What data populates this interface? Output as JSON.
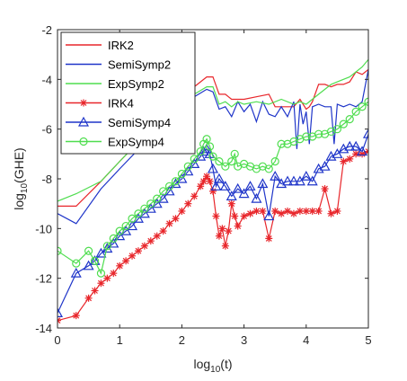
{
  "chart_data": {
    "type": "line",
    "title": "",
    "xlabel": "log",
    "xlabel_sub": "10",
    "xlabel_suffix": "(t)",
    "ylabel": "log",
    "ylabel_sub": "10",
    "ylabel_suffix": "(GHE)",
    "xlim": [
      0,
      5
    ],
    "ylim": [
      -14,
      -2
    ],
    "xticks": [
      0,
      1,
      2,
      3,
      4,
      5
    ],
    "yticks": [
      -14,
      -12,
      -10,
      -8,
      -6,
      -4,
      -2
    ],
    "xtick_labels": [
      "0",
      "1",
      "2",
      "3",
      "4",
      "5"
    ],
    "ytick_labels": [
      "-14",
      "-12",
      "-10",
      "-8",
      "-6",
      "-4",
      "-2"
    ],
    "grid": false,
    "legend_position": "top-left",
    "series": [
      {
        "name": "IRK2",
        "color": "#e8262b",
        "marker": "none",
        "x": [
          0,
          0.3,
          0.7,
          1.0,
          1.5,
          2.0,
          2.2,
          2.4,
          2.5,
          2.6,
          2.7,
          2.8,
          3.0,
          3.2,
          3.4,
          3.5,
          3.6,
          3.8,
          3.9,
          4.0,
          4.05,
          4.1,
          4.2,
          4.3,
          4.4,
          4.5,
          4.6,
          4.7,
          4.8,
          4.9,
          5.0
        ],
        "y": [
          -9.1,
          -9.1,
          -8.1,
          -7.3,
          -6.0,
          -4.8,
          -4.3,
          -3.9,
          -3.9,
          -4.6,
          -4.6,
          -4.8,
          -4.8,
          -4.7,
          -4.6,
          -5.1,
          -5.1,
          -5.1,
          -4.8,
          -5.2,
          -5.1,
          -4.9,
          -4.2,
          -4.2,
          -4.3,
          -4.2,
          -4.2,
          -4.1,
          -3.7,
          -3.8,
          -3.6
        ]
      },
      {
        "name": "SemiSymp2",
        "color": "#1f35c9",
        "marker": "none",
        "x": [
          0,
          0.3,
          0.7,
          1.0,
          1.5,
          2.0,
          2.2,
          2.4,
          2.5,
          2.6,
          2.7,
          2.8,
          2.9,
          3.0,
          3.1,
          3.2,
          3.3,
          3.4,
          3.5,
          3.6,
          3.7,
          3.8,
          3.85,
          3.9,
          3.95,
          4.0,
          4.05,
          4.1,
          4.2,
          4.3,
          4.4,
          4.45,
          4.5,
          4.6,
          4.7,
          4.8,
          4.9,
          5.0
        ],
        "y": [
          -9.4,
          -9.8,
          -8.4,
          -7.6,
          -6.3,
          -5.1,
          -4.7,
          -4.4,
          -4.5,
          -5.2,
          -5.1,
          -5.5,
          -4.9,
          -5.3,
          -5.0,
          -5.7,
          -4.9,
          -5.4,
          -5.5,
          -5.1,
          -5.5,
          -4.9,
          -6.8,
          -5.0,
          -5.8,
          -5.3,
          -6.6,
          -5.1,
          -5.0,
          -5.1,
          -5.1,
          -6.6,
          -5.0,
          -5.1,
          -5.0,
          -5.1,
          -4.9,
          -3.6
        ]
      },
      {
        "name": "ExpSymp2",
        "color": "#4fdd4f",
        "marker": "none",
        "x": [
          0,
          0.3,
          0.7,
          1.0,
          1.5,
          2.0,
          2.2,
          2.4,
          2.5,
          2.6,
          2.7,
          2.8,
          2.9,
          3.0,
          3.2,
          3.4,
          3.6,
          3.8,
          3.9,
          4.0,
          4.2,
          4.3,
          4.4,
          4.5,
          4.6,
          4.7,
          4.8,
          4.9,
          5.0
        ],
        "y": [
          -8.9,
          -8.6,
          -8.1,
          -7.3,
          -6.0,
          -4.9,
          -4.6,
          -4.3,
          -4.3,
          -5.0,
          -4.9,
          -5.1,
          -4.9,
          -5.0,
          -4.9,
          -5.0,
          -4.8,
          -5.0,
          -4.9,
          -5.0,
          -4.6,
          -4.4,
          -4.2,
          -4.1,
          -4.0,
          -3.9,
          -3.7,
          -3.5,
          -3.2
        ]
      },
      {
        "name": "IRK4",
        "color": "#e8262b",
        "marker": "star",
        "x": [
          0,
          0.3,
          0.5,
          0.6,
          0.7,
          0.8,
          0.9,
          1.0,
          1.1,
          1.2,
          1.3,
          1.4,
          1.5,
          1.6,
          1.7,
          1.8,
          1.9,
          2.0,
          2.1,
          2.2,
          2.3,
          2.35,
          2.4,
          2.45,
          2.5,
          2.55,
          2.6,
          2.65,
          2.7,
          2.75,
          2.8,
          2.85,
          2.9,
          3.0,
          3.1,
          3.2,
          3.3,
          3.4,
          3.5,
          3.6,
          3.7,
          3.8,
          3.9,
          4.0,
          4.1,
          4.2,
          4.3,
          4.4,
          4.5,
          4.6,
          4.7,
          4.8,
          4.9,
          5.0
        ],
        "y": [
          -13.7,
          -13.5,
          -12.8,
          -12.5,
          -12.2,
          -12.0,
          -11.8,
          -11.5,
          -11.3,
          -11.1,
          -10.9,
          -10.7,
          -10.5,
          -10.3,
          -10.1,
          -9.8,
          -9.6,
          -9.3,
          -9.0,
          -8.7,
          -8.3,
          -8.1,
          -7.9,
          -8.1,
          -8.5,
          -9.5,
          -10.3,
          -10.0,
          -10.7,
          -10.1,
          -9.0,
          -9.5,
          -9.9,
          -9.5,
          -9.4,
          -9.3,
          -9.3,
          -10.4,
          -9.3,
          -9.4,
          -9.3,
          -9.4,
          -9.3,
          -9.3,
          -9.3,
          -9.3,
          -8.4,
          -9.4,
          -9.3,
          -7.3,
          -7.2,
          -7.0,
          -7.0,
          -6.9
        ]
      },
      {
        "name": "SemiSymp4",
        "color": "#1f35c9",
        "marker": "triangle",
        "x": [
          0,
          0.3,
          0.5,
          0.6,
          0.7,
          0.8,
          0.9,
          1.0,
          1.1,
          1.2,
          1.3,
          1.4,
          1.5,
          1.6,
          1.7,
          1.8,
          1.9,
          2.0,
          2.1,
          2.2,
          2.3,
          2.35,
          2.4,
          2.45,
          2.5,
          2.55,
          2.6,
          2.7,
          2.8,
          2.9,
          3.0,
          3.1,
          3.2,
          3.3,
          3.4,
          3.5,
          3.6,
          3.7,
          3.8,
          3.9,
          4.0,
          4.1,
          4.2,
          4.3,
          4.4,
          4.5,
          4.6,
          4.7,
          4.8,
          4.9,
          5.0
        ],
        "y": [
          -13.4,
          -11.8,
          -11.5,
          -11.3,
          -11.0,
          -10.8,
          -10.6,
          -10.3,
          -10.1,
          -9.9,
          -9.6,
          -9.4,
          -9.2,
          -9.0,
          -8.8,
          -8.5,
          -8.2,
          -8.0,
          -7.7,
          -7.4,
          -7.1,
          -6.9,
          -6.8,
          -7.0,
          -7.6,
          -8.3,
          -8.0,
          -8.3,
          -8.7,
          -8.4,
          -8.6,
          -8.3,
          -8.8,
          -8.2,
          -9.5,
          -7.9,
          -8.2,
          -8.1,
          -8.1,
          -8.1,
          -7.9,
          -8.1,
          -7.6,
          -7.5,
          -7.1,
          -7.0,
          -6.8,
          -6.7,
          -6.7,
          -6.9,
          -6.2
        ]
      },
      {
        "name": "ExpSymp4",
        "color": "#4fdd4f",
        "marker": "circle",
        "x": [
          0,
          0.3,
          0.5,
          0.6,
          0.7,
          0.8,
          0.9,
          1.0,
          1.1,
          1.2,
          1.3,
          1.4,
          1.5,
          1.6,
          1.7,
          1.8,
          1.9,
          2.0,
          2.1,
          2.2,
          2.3,
          2.35,
          2.4,
          2.45,
          2.5,
          2.6,
          2.7,
          2.8,
          2.85,
          2.9,
          3.0,
          3.1,
          3.2,
          3.3,
          3.4,
          3.5,
          3.6,
          3.7,
          3.8,
          3.9,
          4.0,
          4.1,
          4.2,
          4.3,
          4.4,
          4.5,
          4.6,
          4.7,
          4.8,
          4.9,
          5.0
        ],
        "y": [
          -10.9,
          -11.4,
          -10.9,
          -11.3,
          -11.8,
          -10.7,
          -10.4,
          -10.1,
          -9.9,
          -9.6,
          -9.4,
          -9.2,
          -9.0,
          -8.8,
          -8.5,
          -8.3,
          -8.1,
          -7.8,
          -7.5,
          -7.2,
          -6.9,
          -6.6,
          -6.4,
          -6.7,
          -7.1,
          -7.3,
          -7.5,
          -7.3,
          -7.0,
          -7.5,
          -7.4,
          -7.5,
          -7.6,
          -7.5,
          -7.6,
          -7.3,
          -6.6,
          -6.6,
          -6.5,
          -6.4,
          -6.3,
          -6.3,
          -6.2,
          -6.2,
          -6.1,
          -6.0,
          -5.8,
          -5.6,
          -5.3,
          -5.1,
          -4.9
        ]
      }
    ]
  }
}
